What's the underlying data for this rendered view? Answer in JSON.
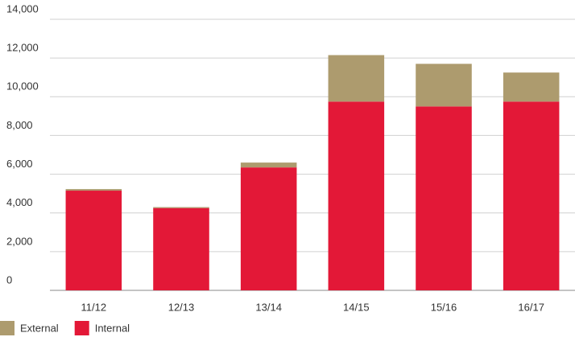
{
  "chart_data": {
    "type": "stacked_bar",
    "categories": [
      "11/12",
      "12/13",
      "13/14",
      "14/15",
      "15/16",
      "16/17"
    ],
    "series": [
      {
        "name": "External",
        "color": "#ad9b6e",
        "values": [
          80,
          50,
          250,
          2400,
          2200,
          1500
        ]
      },
      {
        "name": "Internal",
        "color": "#e31837",
        "values": [
          5150,
          4250,
          6350,
          9750,
          9500,
          9750
        ]
      }
    ],
    "ylim": [
      0,
      14000
    ],
    "yticks": [
      0,
      {
        "value": 2000,
        "label": "2,000"
      },
      {
        "value": 4000,
        "label": "4,000"
      },
      {
        "value": 6000,
        "label": "6,000"
      },
      {
        "value": 8000,
        "label": "8,000"
      },
      {
        "value": 10000,
        "label": "10,000"
      },
      {
        "value": 12000,
        "label": "12,000"
      },
      {
        "value": 14000,
        "label": "14,000"
      }
    ],
    "grid": true
  }
}
